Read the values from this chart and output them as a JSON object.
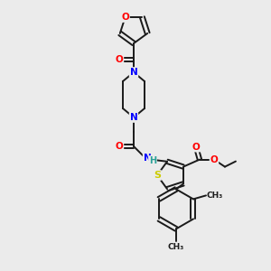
{
  "background_color": "#ebebeb",
  "bond_color": "#1a1a1a",
  "atom_colors": {
    "O": "#ff0000",
    "N": "#0000ff",
    "S": "#cccc00",
    "C": "#1a1a1a",
    "H": "#2aa198"
  }
}
